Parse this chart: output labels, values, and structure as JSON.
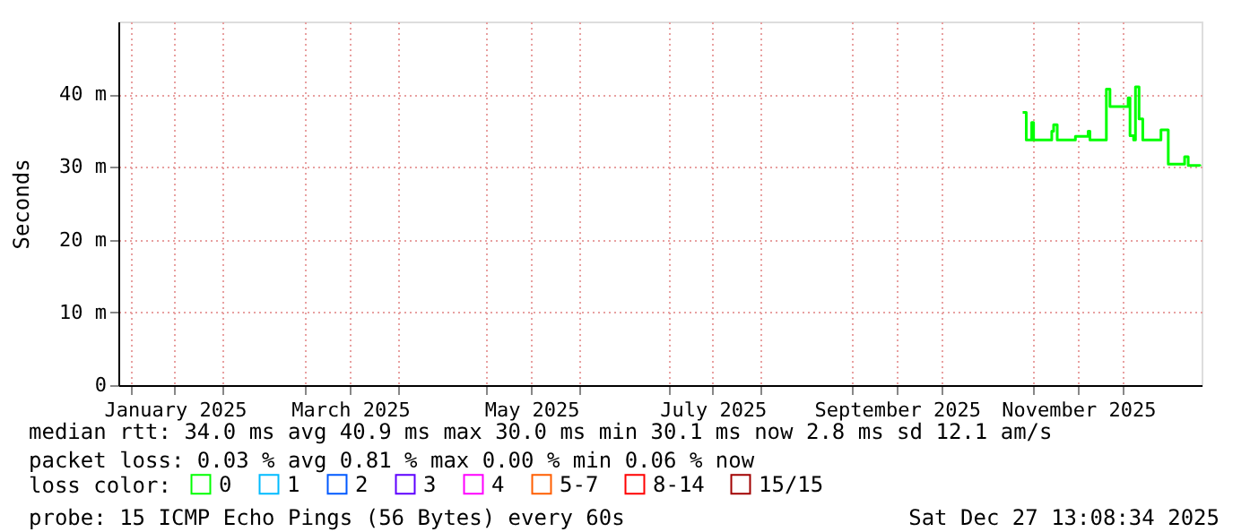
{
  "chart_data": {
    "type": "step",
    "ylabel": "Seconds",
    "legend_title": "loss color:",
    "legend": "bottom",
    "grid": true,
    "xlim": [
      "2024-12-28",
      "2025-12-27T13:00"
    ],
    "ylim": [
      0,
      50
    ],
    "yticks": [
      0,
      {
        "value": 10,
        "label": "10 m"
      },
      {
        "value": 20,
        "label": "20 m"
      },
      {
        "value": 30,
        "label": "30 m"
      },
      {
        "value": 40,
        "label": "40 m"
      }
    ],
    "xticks": [
      {
        "value": "2025-01-16",
        "label": "January 2025"
      },
      {
        "value": "2025-03-16",
        "label": "March 2025"
      },
      {
        "value": "2025-05-16",
        "label": "May 2025"
      },
      {
        "value": "2025-07-16",
        "label": "July 2025"
      },
      {
        "value": "2025-09-16",
        "label": "September 2025"
      },
      {
        "value": "2025-11-16",
        "label": "November 2025"
      },
      {
        "value": "2025-01-01",
        "label": null
      },
      {
        "value": "2025-02-01",
        "label": null
      },
      {
        "value": "2025-03-01",
        "label": null
      },
      {
        "value": "2025-04-01",
        "label": null
      },
      {
        "value": "2025-05-01",
        "label": null
      },
      {
        "value": "2025-06-01",
        "label": null
      },
      {
        "value": "2025-07-01",
        "label": null
      },
      {
        "value": "2025-08-01",
        "label": null
      },
      {
        "value": "2025-09-01",
        "label": null
      },
      {
        "value": "2025-10-01",
        "label": null
      },
      {
        "value": "2025-11-01",
        "label": null
      },
      {
        "value": "2025-12-01",
        "label": null
      }
    ],
    "x": [
      "2025-10-28T08:00",
      "2025-10-29T13:00",
      "2025-10-31T09:00",
      "2025-11-01T00:00",
      "2025-11-07T03:00",
      "2025-11-07T18:00",
      "2025-11-08T23:00",
      "2025-11-15T02:00",
      "2025-11-19T09:00",
      "2025-11-19T23:00",
      "2025-11-25T12:00",
      "2025-11-26T17:00",
      "2025-12-02T05:00",
      "2025-12-02T20:00",
      "2025-12-03T11:00",
      "2025-12-04T16:00",
      "2025-12-05T07:00",
      "2025-12-06T12:00",
      "2025-12-07T18:00",
      "2025-12-13T21:00",
      "2025-12-16T08:00",
      "2025-12-21T20:00",
      "2025-12-23T01:00",
      "2025-12-27T00:00"
    ],
    "series": [
      {
        "name": "0",
        "color": "#00ff00",
        "values": [
          37.5,
          33.7,
          36.1,
          33.7,
          34.9,
          35.8,
          33.7,
          34.2,
          34.9,
          33.7,
          40.7,
          38.3,
          38.3,
          39.5,
          34.3,
          33.7,
          41.0,
          36.6,
          33.7,
          35.1,
          30.4,
          31.4,
          30.2,
          30.1
        ]
      },
      {
        "name": "1",
        "color": "#00bbff",
        "values": [
          null,
          null,
          null,
          null,
          null,
          null,
          null,
          null,
          null,
          null,
          null,
          null,
          null,
          null,
          null,
          null,
          null,
          null,
          null,
          null,
          null,
          null,
          null,
          null
        ]
      },
      {
        "name": "2",
        "color": "#0059ff",
        "values": [
          null,
          null,
          null,
          null,
          null,
          null,
          null,
          null,
          null,
          null,
          null,
          null,
          null,
          null,
          null,
          null,
          null,
          null,
          null,
          null,
          null,
          null,
          null,
          null
        ]
      },
      {
        "name": "3",
        "color": "#5e00ff",
        "values": [
          null,
          null,
          null,
          null,
          null,
          null,
          null,
          null,
          null,
          null,
          null,
          null,
          null,
          null,
          null,
          null,
          null,
          null,
          null,
          null,
          null,
          null,
          null,
          null
        ]
      },
      {
        "name": "4",
        "color": "#ff00ff",
        "values": [
          null,
          null,
          null,
          null,
          null,
          null,
          null,
          null,
          null,
          null,
          null,
          null,
          null,
          null,
          null,
          null,
          null,
          null,
          null,
          null,
          null,
          null,
          null,
          null
        ]
      },
      {
        "name": "5-7",
        "color": "#ff5e00",
        "values": [
          null,
          null,
          null,
          null,
          null,
          null,
          null,
          null,
          null,
          null,
          null,
          null,
          null,
          null,
          null,
          null,
          null,
          null,
          null,
          null,
          null,
          null,
          null,
          null
        ]
      },
      {
        "name": "8-14",
        "color": "#ff0000",
        "values": [
          null,
          null,
          null,
          null,
          null,
          null,
          null,
          null,
          null,
          null,
          null,
          null,
          null,
          null,
          null,
          null,
          null,
          null,
          null,
          null,
          null,
          null,
          null,
          null
        ]
      },
      {
        "name": "15/15",
        "color": "#a10000",
        "values": [
          null,
          null,
          null,
          null,
          null,
          null,
          null,
          null,
          null,
          null,
          null,
          null,
          null,
          null,
          null,
          null,
          null,
          null,
          null,
          null,
          null,
          null,
          null,
          null
        ]
      }
    ],
    "annotations": [
      "median rtt:  34.0 ms avg  40.9 ms max  30.0 ms min  30.1 ms now  2.8 ms sd  12.1   am/s",
      "packet loss: 0.03 % avg  0.81 % max  0.00 % min  0.06 % now",
      "probe:       15 ICMP Echo Pings (56 Bytes) every 60s",
      "Sat Dec 27 13:08:34 2025"
    ]
  }
}
